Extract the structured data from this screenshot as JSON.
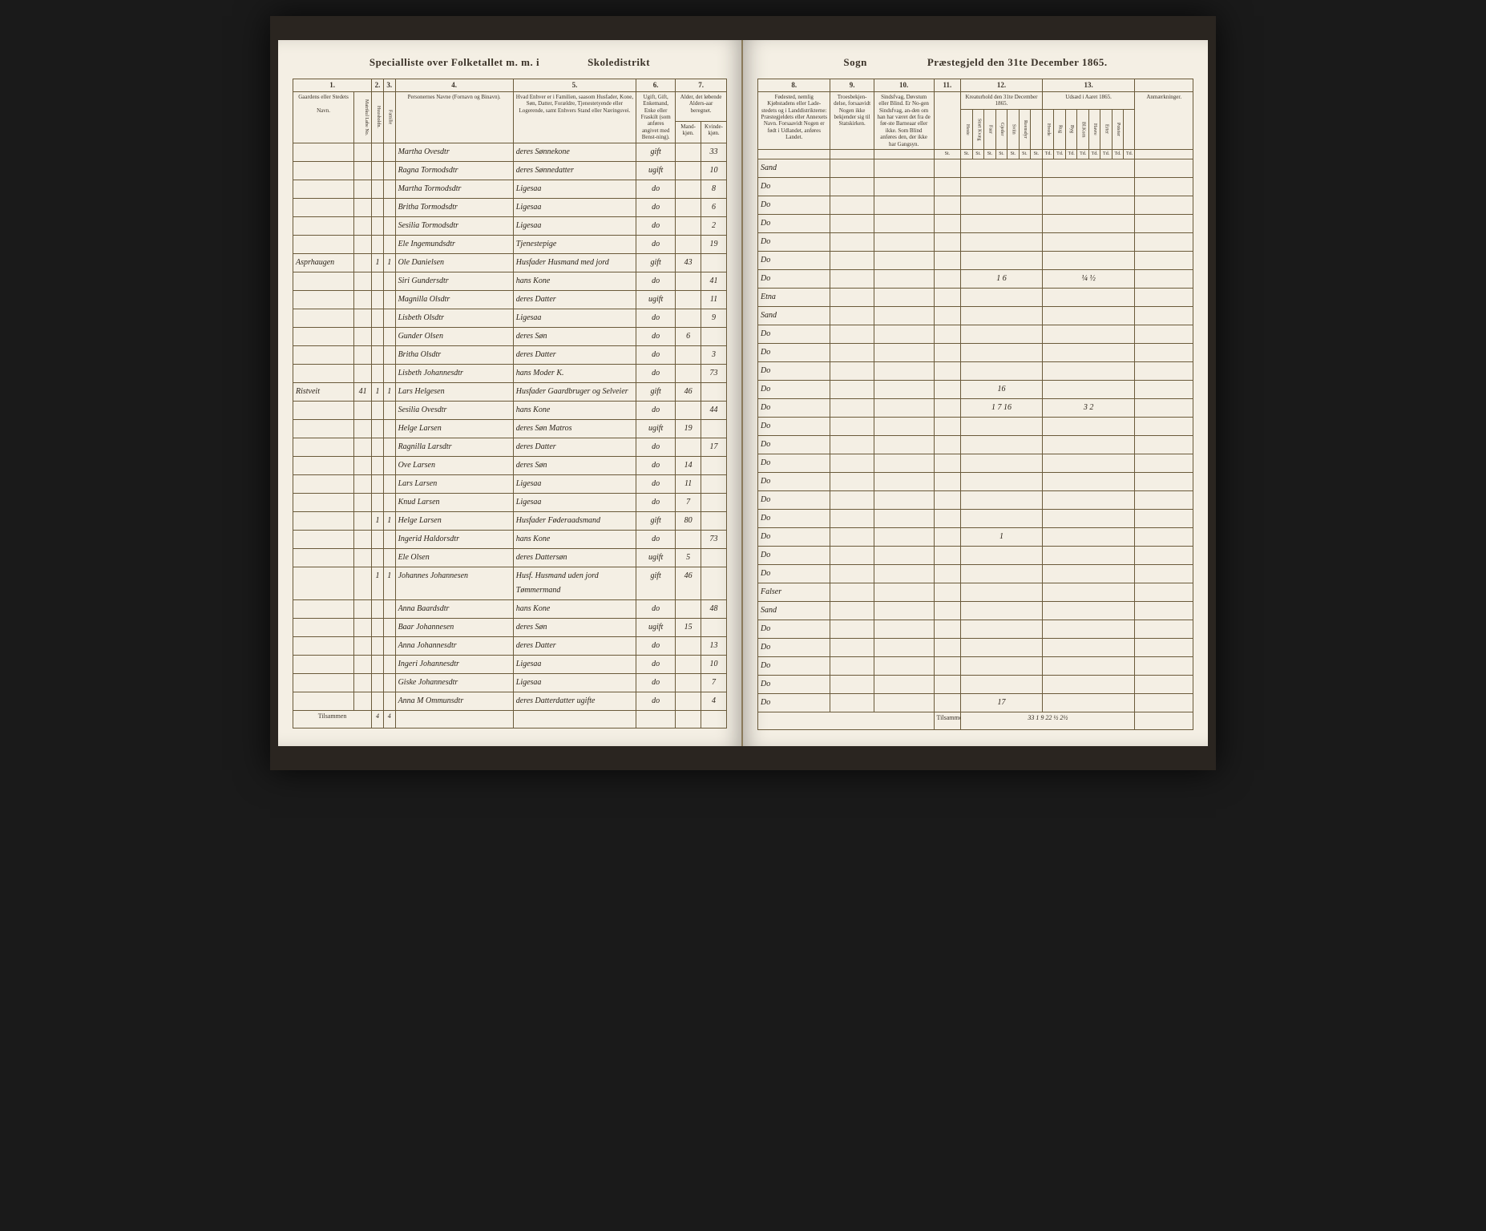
{
  "leftHeader": {
    "title_left": "Specialliste over Folketallet m. m. i",
    "title_right": "Skoledistrikt"
  },
  "rightHeader": {
    "title_left": "Sogn",
    "title_right": "Præstegjeld den 31te December 1865."
  },
  "leftColumns": {
    "c1": "1.",
    "c2": "2.",
    "c3": "3.",
    "c4": "4.",
    "c5": "5.",
    "c6": "6.",
    "c7": "7.",
    "h1": "Gaardens eller Stedets",
    "h1b": "Navn.",
    "h1c": "Matrikul Løbe No.",
    "h4": "Personernes Navne (Fornavn og Binavn).",
    "h5": "Hvad Enhver er i Familien, saasom Husfader, Kone, Søn, Datter, Forældre, Tjenestetyende eller Logerende, samt Enhvers Stand eller Næringsvei.",
    "h6": "Ugift, Gift, Enkemand, Enke eller Fraskilt (som anføres angivet med Benst-ning).",
    "h7": "Alder, det løbende Alders-aar beregnet.",
    "h7a": "Mand-kjøn.",
    "h7b": "Kvinde-kjøn."
  },
  "rightColumns": {
    "c8": "8.",
    "c9": "9.",
    "c10": "10.",
    "c11": "11.",
    "c12": "12.",
    "c13": "13.",
    "h8": "Fødested, nemlig Kjøbstadens eller Lade-stedets og i Landdistrikterne: Præstegjeldets eller Annexets Navn. Forsaavidt Nogen er født i Udlandet, anføres Landet.",
    "h9": "Troesbekjen-delse, forsaavidt Nogen ikke bekjender sig til Statskirken.",
    "h10": "Sindsfvag, Døvstum eller Blind. Er No-gen Sindsfvag, an-den om han har været det fra de før-ste Barneaar eller ikke. Som Blind anføres den, der ikke har Gangsyn.",
    "h11": "",
    "h12": "Kreaturhold den 31te December 1865.",
    "h13": "Udsæd i Aaret 1865.",
    "h14": "Anmærkninger."
  },
  "rows": [
    {
      "gaard": "",
      "mn": "",
      "hn": "",
      "fn": "",
      "navn": "Martha Ovesdtr",
      "stand": "deres Sønnekone",
      "gift": "gift",
      "mk": "",
      "kk": "33",
      "fode": "Sand",
      "t12": "",
      "t13": ""
    },
    {
      "gaard": "",
      "mn": "",
      "hn": "",
      "fn": "",
      "navn": "Ragna Tormodsdtr",
      "stand": "deres Sønnedatter",
      "gift": "ugift",
      "mk": "",
      "kk": "10",
      "fode": "Do",
      "t12": "",
      "t13": ""
    },
    {
      "gaard": "",
      "mn": "",
      "hn": "",
      "fn": "",
      "navn": "Martha Tormodsdtr",
      "stand": "Ligesaa",
      "gift": "do",
      "mk": "",
      "kk": "8",
      "fode": "Do",
      "t12": "",
      "t13": ""
    },
    {
      "gaard": "",
      "mn": "",
      "hn": "",
      "fn": "",
      "navn": "Britha Tormodsdtr",
      "stand": "Ligesaa",
      "gift": "do",
      "mk": "",
      "kk": "6",
      "fode": "Do",
      "t12": "",
      "t13": ""
    },
    {
      "gaard": "",
      "mn": "",
      "hn": "",
      "fn": "",
      "navn": "Sesilia Tormodsdtr",
      "stand": "Ligesaa",
      "gift": "do",
      "mk": "",
      "kk": "2",
      "fode": "Do",
      "t12": "",
      "t13": ""
    },
    {
      "gaard": "",
      "mn": "",
      "hn": "",
      "fn": "",
      "navn": "Ele Ingemundsdtr",
      "stand": "Tjenestepige",
      "gift": "do",
      "mk": "",
      "kk": "19",
      "fode": "Do",
      "t12": "",
      "t13": ""
    },
    {
      "gaard": "Asprhaugen",
      "mn": "",
      "hn": "1",
      "fn": "1",
      "navn": "Ole Danielsen",
      "stand": "Husfader Husmand med jord",
      "gift": "gift",
      "mk": "43",
      "kk": "",
      "fode": "Do",
      "t12": "1 6",
      "t13": "¼ ½"
    },
    {
      "gaard": "",
      "mn": "",
      "hn": "",
      "fn": "",
      "navn": "Siri Gundersdtr",
      "stand": "hans Kone",
      "gift": "do",
      "mk": "",
      "kk": "41",
      "fode": "Etna",
      "t12": "",
      "t13": ""
    },
    {
      "gaard": "",
      "mn": "",
      "hn": "",
      "fn": "",
      "navn": "Magnilla Olsdtr",
      "stand": "deres Datter",
      "gift": "ugift",
      "mk": "",
      "kk": "11",
      "fode": "Sand",
      "t12": "",
      "t13": ""
    },
    {
      "gaard": "",
      "mn": "",
      "hn": "",
      "fn": "",
      "navn": "Lisbeth Olsdtr",
      "stand": "Ligesaa",
      "gift": "do",
      "mk": "",
      "kk": "9",
      "fode": "Do",
      "t12": "",
      "t13": ""
    },
    {
      "gaard": "",
      "mn": "",
      "hn": "",
      "fn": "",
      "navn": "Gunder Olsen",
      "stand": "deres Søn",
      "gift": "do",
      "mk": "6",
      "kk": "",
      "fode": "Do",
      "t12": "",
      "t13": ""
    },
    {
      "gaard": "",
      "mn": "",
      "hn": "",
      "fn": "",
      "navn": "Britha Olsdtr",
      "stand": "deres Datter",
      "gift": "do",
      "mk": "",
      "kk": "3",
      "fode": "Do",
      "t12": "",
      "t13": ""
    },
    {
      "gaard": "",
      "mn": "",
      "hn": "",
      "fn": "",
      "navn": "Lisbeth Johannesdtr",
      "stand": "hans Moder K.",
      "gift": "do",
      "mk": "",
      "kk": "73",
      "fode": "Do",
      "t12": "16",
      "t13": ""
    },
    {
      "gaard": "Ristveit",
      "mn": "41",
      "hn": "1",
      "fn": "1",
      "navn": "Lars Helgesen",
      "stand": "Husfader Gaardbruger og Selveier",
      "gift": "gift",
      "mk": "46",
      "kk": "",
      "fode": "Do",
      "t12": "1 7 16",
      "t13": "3 2"
    },
    {
      "gaard": "",
      "mn": "",
      "hn": "",
      "fn": "",
      "navn": "Sesilia Ovesdtr",
      "stand": "hans Kone",
      "gift": "do",
      "mk": "",
      "kk": "44",
      "fode": "Do",
      "t12": "",
      "t13": ""
    },
    {
      "gaard": "",
      "mn": "",
      "hn": "",
      "fn": "",
      "navn": "Helge Larsen",
      "stand": "deres Søn Matros",
      "gift": "ugift",
      "mk": "19",
      "kk": "",
      "fode": "Do",
      "t12": "",
      "t13": ""
    },
    {
      "gaard": "",
      "mn": "",
      "hn": "",
      "fn": "",
      "navn": "Ragnilla Larsdtr",
      "stand": "deres Datter",
      "gift": "do",
      "mk": "",
      "kk": "17",
      "fode": "Do",
      "t12": "",
      "t13": ""
    },
    {
      "gaard": "",
      "mn": "",
      "hn": "",
      "fn": "",
      "navn": "Ove Larsen",
      "stand": "deres Søn",
      "gift": "do",
      "mk": "14",
      "kk": "",
      "fode": "Do",
      "t12": "",
      "t13": ""
    },
    {
      "gaard": "",
      "mn": "",
      "hn": "",
      "fn": "",
      "navn": "Lars Larsen",
      "stand": "Ligesaa",
      "gift": "do",
      "mk": "11",
      "kk": "",
      "fode": "Do",
      "t12": "",
      "t13": ""
    },
    {
      "gaard": "",
      "mn": "",
      "hn": "",
      "fn": "",
      "navn": "Knud Larsen",
      "stand": "Ligesaa",
      "gift": "do",
      "mk": "7",
      "kk": "",
      "fode": "Do",
      "t12": "",
      "t13": ""
    },
    {
      "gaard": "",
      "mn": "",
      "hn": "1",
      "fn": "1",
      "navn": "Helge Larsen",
      "stand": "Husfader Føderaadsmand",
      "gift": "gift",
      "mk": "80",
      "kk": "",
      "fode": "Do",
      "t12": "1",
      "t13": ""
    },
    {
      "gaard": "",
      "mn": "",
      "hn": "",
      "fn": "",
      "navn": "Ingerid Haldorsdtr",
      "stand": "hans Kone",
      "gift": "do",
      "mk": "",
      "kk": "73",
      "fode": "Do",
      "t12": "",
      "t13": ""
    },
    {
      "gaard": "",
      "mn": "",
      "hn": "",
      "fn": "",
      "navn": "Ele Olsen",
      "stand": "deres Dattersøn",
      "gift": "ugift",
      "mk": "5",
      "kk": "",
      "fode": "Do",
      "t12": "",
      "t13": ""
    },
    {
      "gaard": "",
      "mn": "",
      "hn": "1",
      "fn": "1",
      "navn": "Johannes Johannesen",
      "stand": "Husf. Husmand uden jord Tømmermand",
      "gift": "gift",
      "mk": "46",
      "kk": "",
      "fode": "Falser",
      "t12": "",
      "t13": ""
    },
    {
      "gaard": "",
      "mn": "",
      "hn": "",
      "fn": "",
      "navn": "Anna Baardsdtr",
      "stand": "hans Kone",
      "gift": "do",
      "mk": "",
      "kk": "48",
      "fode": "Sand",
      "t12": "",
      "t13": ""
    },
    {
      "gaard": "",
      "mn": "",
      "hn": "",
      "fn": "",
      "navn": "Baar Johannesen",
      "stand": "deres Søn",
      "gift": "ugift",
      "mk": "15",
      "kk": "",
      "fode": "Do",
      "t12": "",
      "t13": ""
    },
    {
      "gaard": "",
      "mn": "",
      "hn": "",
      "fn": "",
      "navn": "Anna Johannesdtr",
      "stand": "deres Datter",
      "gift": "do",
      "mk": "",
      "kk": "13",
      "fode": "Do",
      "t12": "",
      "t13": ""
    },
    {
      "gaard": "",
      "mn": "",
      "hn": "",
      "fn": "",
      "navn": "Ingeri Johannesdtr",
      "stand": "Ligesaa",
      "gift": "do",
      "mk": "",
      "kk": "10",
      "fode": "Do",
      "t12": "",
      "t13": ""
    },
    {
      "gaard": "",
      "mn": "",
      "hn": "",
      "fn": "",
      "navn": "Giske Johannesdtr",
      "stand": "Ligesaa",
      "gift": "do",
      "mk": "",
      "kk": "7",
      "fode": "Do",
      "t12": "",
      "t13": ""
    },
    {
      "gaard": "",
      "mn": "",
      "hn": "",
      "fn": "",
      "navn": "Anna M Ommunsdtr",
      "stand": "deres Datterdatter ugifte",
      "gift": "do",
      "mk": "",
      "kk": "4",
      "fode": "Do",
      "t12": "17",
      "t13": ""
    }
  ],
  "footer": {
    "tilsammen": "Tilsammen",
    "left_sum1": "4",
    "left_sum2": "4",
    "right_sums": "33 1 9 22     ½ 2½"
  }
}
